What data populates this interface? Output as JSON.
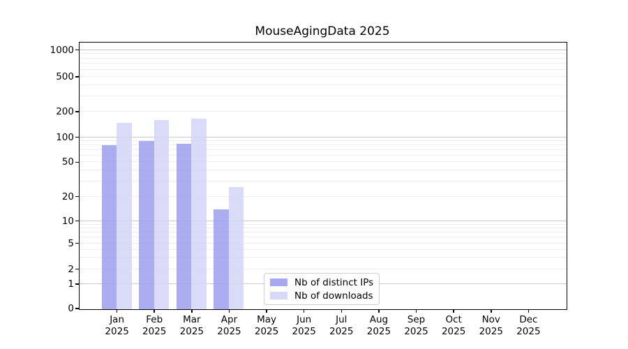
{
  "chart_data": {
    "type": "bar",
    "title": "MouseAgingData 2025",
    "year_label": "2025",
    "months": [
      "Jan",
      "Feb",
      "Mar",
      "Apr",
      "May",
      "Jun",
      "Jul",
      "Aug",
      "Sep",
      "Oct",
      "Nov",
      "Dec"
    ],
    "series": [
      {
        "name": "Nb of distinct IPs",
        "color": "#9e9eee",
        "values": [
          81,
          91,
          85,
          14,
          0,
          0,
          0,
          0,
          0,
          0,
          0,
          0
        ]
      },
      {
        "name": "Nb of downloads",
        "color": "#d4d4f8",
        "values": [
          150,
          162,
          168,
          26,
          0,
          0,
          0,
          0,
          0,
          0,
          0,
          0
        ]
      }
    ],
    "ylabel": "",
    "xlabel": "",
    "y_ticks": [
      0,
      1,
      2,
      5,
      10,
      20,
      50,
      100,
      200,
      500,
      1000
    ],
    "y_grid_major": [
      1,
      10,
      100,
      1000
    ],
    "y_grid_minor": [
      2,
      3,
      4,
      5,
      6,
      7,
      8,
      9,
      20,
      30,
      40,
      50,
      60,
      70,
      80,
      90,
      200,
      300,
      400,
      500,
      600,
      700,
      800,
      900
    ],
    "y_scale": "log-like with 0 baseline",
    "y_scale_anchors": [
      [
        0,
        0
      ],
      [
        1,
        0.092
      ],
      [
        2,
        0.148
      ],
      [
        5,
        0.245
      ],
      [
        10,
        0.329
      ],
      [
        20,
        0.421
      ],
      [
        50,
        0.55
      ],
      [
        100,
        0.644
      ],
      [
        200,
        0.74
      ],
      [
        500,
        0.872
      ],
      [
        1000,
        0.972
      ]
    ],
    "ylim": [
      0,
      1200
    ],
    "grid": "on",
    "legend_position": "lower center"
  }
}
